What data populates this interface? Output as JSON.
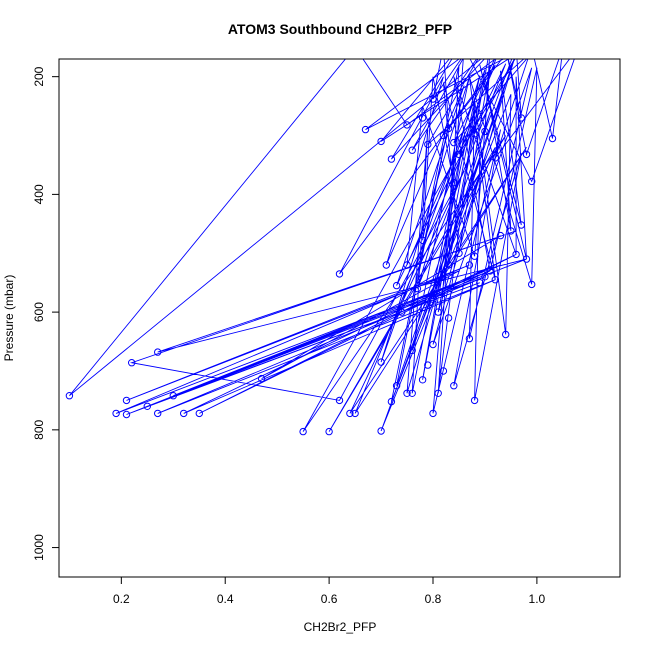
{
  "chart_data": {
    "type": "line",
    "title": "ATOM3 Southbound CH2Br2_PFP",
    "xlabel": "CH2Br2_PFP",
    "ylabel": "Pressure (mbar)",
    "xlim": [
      0.08,
      1.16
    ],
    "ylim": [
      1050,
      170
    ],
    "y_reversed": true,
    "x_ticks": [
      0.2,
      0.4,
      0.6,
      0.8,
      1.0
    ],
    "x_tick_labels": [
      "0.2",
      "0.4",
      "0.6",
      "0.8",
      "1.0"
    ],
    "y_ticks": [
      200,
      400,
      600,
      800,
      1000
    ],
    "y_tick_labels": [
      "200",
      "400",
      "600",
      "800",
      "1000"
    ],
    "colors": {
      "series": "#0000ff",
      "axes": "#000000"
    },
    "series": [
      {
        "points": [
          [
            0.88,
            150
          ],
          [
            0.67,
            290
          ],
          [
            0.98,
            150
          ],
          [
            0.7,
            310
          ],
          [
            0.85,
            150
          ],
          [
            0.72,
            340
          ],
          [
            0.92,
            150
          ],
          [
            0.1,
            742
          ],
          [
            0.65,
            150
          ],
          [
            0.75,
            282
          ],
          [
            0.95,
            150
          ],
          [
            0.83,
            288
          ],
          [
            0.82,
            150
          ],
          [
            0.8,
            238
          ],
          [
            0.87,
            150
          ],
          [
            0.76,
            325
          ],
          [
            0.9,
            150
          ],
          [
            0.79,
            315
          ],
          [
            1.0,
            150
          ],
          [
            0.84,
            312
          ],
          [
            0.93,
            150
          ],
          [
            0.85,
            332
          ],
          [
            0.97,
            150
          ],
          [
            0.88,
            297
          ],
          [
            0.91,
            150
          ],
          [
            0.9,
            293
          ],
          [
            0.96,
            150
          ],
          [
            0.97,
            270
          ],
          [
            0.94,
            150
          ],
          [
            0.98,
            332
          ],
          [
            1.05,
            150
          ],
          [
            1.03,
            305
          ],
          [
            0.99,
            150
          ],
          [
            0.92,
            338
          ],
          [
            1.08,
            150
          ],
          [
            0.99,
            378
          ],
          [
            0.86,
            150
          ],
          [
            0.84,
            380
          ],
          [
            0.8,
            200
          ],
          [
            0.78,
            478
          ],
          [
            0.85,
            180
          ],
          [
            0.83,
            520
          ],
          [
            0.9,
            200
          ],
          [
            0.95,
            462
          ],
          [
            0.93,
            190
          ],
          [
            0.97,
            452
          ],
          [
            0.89,
            180
          ],
          [
            0.98,
            510
          ],
          [
            0.96,
            200
          ],
          [
            0.96,
            502
          ],
          [
            0.84,
            200
          ],
          [
            0.91,
            530
          ],
          [
            1.0,
            185
          ],
          [
            0.99,
            553
          ],
          [
            0.87,
            200
          ],
          [
            0.92,
            545
          ],
          [
            0.82,
            210
          ],
          [
            0.85,
            500
          ],
          [
            0.91,
            180
          ],
          [
            0.88,
            505
          ],
          [
            0.78,
            250
          ],
          [
            0.75,
            520
          ],
          [
            0.92,
            180
          ],
          [
            0.62,
            535
          ],
          [
            0.82,
            200
          ],
          [
            0.71,
            520
          ],
          [
            0.86,
            215
          ],
          [
            0.73,
            555
          ],
          [
            0.94,
            178
          ],
          [
            0.77,
            560
          ],
          [
            0.89,
            198
          ],
          [
            0.8,
            578
          ],
          [
            0.96,
            160
          ],
          [
            0.81,
            600
          ],
          [
            0.9,
            188
          ],
          [
            0.7,
            685
          ],
          [
            0.87,
            200
          ],
          [
            0.76,
            665
          ],
          [
            0.94,
            210
          ],
          [
            0.8,
            655
          ],
          [
            0.99,
            185
          ],
          [
            0.87,
            645
          ],
          [
            0.88,
            240
          ],
          [
            0.94,
            638
          ],
          [
            0.95,
            230
          ],
          [
            0.72,
            752
          ],
          [
            0.83,
            280
          ],
          [
            0.73,
            725
          ],
          [
            0.91,
            260
          ],
          [
            0.75,
            738
          ],
          [
            0.79,
            290
          ],
          [
            0.76,
            738
          ],
          [
            0.86,
            300
          ],
          [
            0.78,
            715
          ],
          [
            0.88,
            250
          ],
          [
            0.81,
            738
          ],
          [
            0.84,
            330
          ],
          [
            0.8,
            772
          ],
          [
            0.93,
            290
          ],
          [
            0.84,
            725
          ],
          [
            0.97,
            330
          ],
          [
            0.88,
            750
          ],
          [
            0.89,
            340
          ],
          [
            0.7,
            802
          ],
          [
            0.92,
            320
          ],
          [
            0.6,
            803
          ],
          [
            0.94,
            300
          ],
          [
            0.55,
            803
          ],
          [
            0.88,
            280
          ],
          [
            0.65,
            772
          ],
          [
            0.98,
            320
          ],
          [
            0.64,
            772
          ],
          [
            0.86,
            360
          ],
          [
            0.62,
            750
          ],
          [
            0.22,
            686
          ],
          [
            0.96,
            462
          ],
          [
            0.27,
            668
          ],
          [
            0.98,
            510
          ],
          [
            0.3,
            742
          ],
          [
            0.93,
            520
          ],
          [
            0.35,
            772
          ],
          [
            0.96,
            502
          ],
          [
            0.32,
            772
          ],
          [
            0.92,
            545
          ],
          [
            0.27,
            772
          ],
          [
            0.9,
            540
          ],
          [
            0.25,
            760
          ],
          [
            0.89,
            550
          ],
          [
            0.21,
            774
          ],
          [
            0.91,
            530
          ],
          [
            0.19,
            772
          ],
          [
            0.87,
            520
          ],
          [
            0.21,
            750
          ],
          [
            0.85,
            530
          ],
          [
            0.47,
            713
          ],
          [
            0.93,
            470
          ]
        ]
      }
    ],
    "markers": [
      [
        0.67,
        290
      ],
      [
        0.7,
        310
      ],
      [
        0.72,
        340
      ],
      [
        0.75,
        282
      ],
      [
        0.8,
        238
      ],
      [
        0.76,
        325
      ],
      [
        0.79,
        315
      ],
      [
        0.83,
        288
      ],
      [
        0.84,
        312
      ],
      [
        0.85,
        332
      ],
      [
        0.88,
        297
      ],
      [
        0.9,
        293
      ],
      [
        0.97,
        270
      ],
      [
        0.98,
        332
      ],
      [
        1.03,
        305
      ],
      [
        0.92,
        338
      ],
      [
        0.99,
        378
      ],
      [
        0.84,
        380
      ],
      [
        0.78,
        478
      ],
      [
        0.83,
        520
      ],
      [
        0.95,
        462
      ],
      [
        0.97,
        452
      ],
      [
        0.98,
        510
      ],
      [
        0.96,
        502
      ],
      [
        0.91,
        530
      ],
      [
        0.99,
        553
      ],
      [
        0.92,
        545
      ],
      [
        0.85,
        500
      ],
      [
        0.88,
        505
      ],
      [
        0.75,
        520
      ],
      [
        0.62,
        535
      ],
      [
        0.71,
        520
      ],
      [
        0.73,
        555
      ],
      [
        0.77,
        560
      ],
      [
        0.8,
        578
      ],
      [
        0.81,
        600
      ],
      [
        0.7,
        685
      ],
      [
        0.76,
        665
      ],
      [
        0.8,
        655
      ],
      [
        0.87,
        645
      ],
      [
        0.94,
        638
      ],
      [
        0.72,
        752
      ],
      [
        0.73,
        725
      ],
      [
        0.75,
        738
      ],
      [
        0.76,
        738
      ],
      [
        0.78,
        715
      ],
      [
        0.81,
        738
      ],
      [
        0.8,
        772
      ],
      [
        0.84,
        725
      ],
      [
        0.88,
        750
      ],
      [
        0.7,
        802
      ],
      [
        0.6,
        803
      ],
      [
        0.55,
        803
      ],
      [
        0.65,
        772
      ],
      [
        0.64,
        772
      ],
      [
        0.62,
        750
      ],
      [
        0.1,
        742
      ],
      [
        0.22,
        686
      ],
      [
        0.27,
        668
      ],
      [
        0.3,
        742
      ],
      [
        0.35,
        772
      ],
      [
        0.32,
        772
      ],
      [
        0.27,
        772
      ],
      [
        0.25,
        760
      ],
      [
        0.21,
        774
      ],
      [
        0.19,
        772
      ],
      [
        0.21,
        750
      ],
      [
        0.47,
        713
      ],
      [
        0.93,
        470
      ],
      [
        0.87,
        520
      ],
      [
        0.89,
        550
      ],
      [
        0.9,
        540
      ],
      [
        0.78,
        270
      ],
      [
        0.82,
        300
      ],
      [
        0.74,
        600
      ],
      [
        0.83,
        610
      ],
      [
        0.79,
        690
      ],
      [
        0.82,
        700
      ]
    ]
  }
}
